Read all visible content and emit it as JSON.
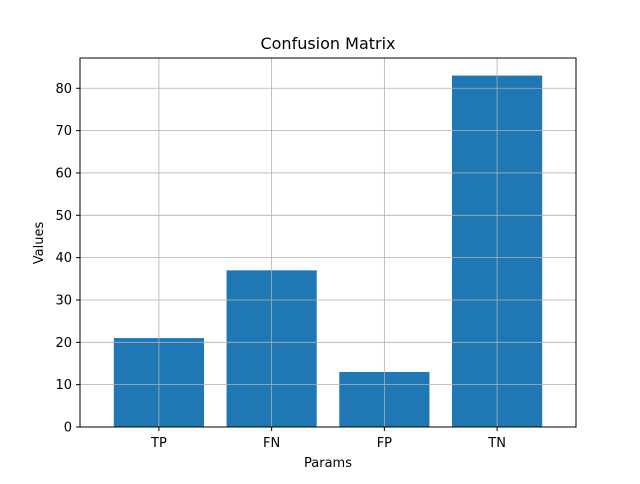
{
  "chart_data": {
    "type": "bar",
    "title": "Confusion Matrix",
    "xlabel": "Params",
    "ylabel": "Values",
    "categories": [
      "TP",
      "FN",
      "FP",
      "TN"
    ],
    "values": [
      21,
      37,
      13,
      83
    ],
    "ylim": [
      0,
      87.15
    ],
    "yticks": [
      0,
      10,
      20,
      30,
      40,
      50,
      60,
      70,
      80
    ],
    "grid": true,
    "bar_color": "#1f77b4",
    "grid_color": "#b0b0b0",
    "axis_color": "#000000"
  }
}
